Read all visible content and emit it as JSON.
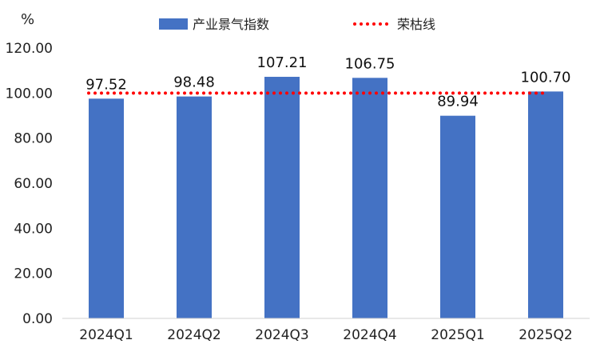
{
  "chart_data": {
    "type": "bar",
    "unit_label": "%",
    "categories": [
      "2024Q1",
      "2024Q2",
      "2024Q3",
      "2024Q4",
      "2025Q1",
      "2025Q2"
    ],
    "series": [
      {
        "name": "产业景气指数",
        "values": [
          97.52,
          98.48,
          107.21,
          106.75,
          89.94,
          100.7
        ],
        "labels": [
          "97.52",
          "98.48",
          "107.21",
          "106.75",
          "89.94",
          "100.70"
        ],
        "color": "#4472C4"
      }
    ],
    "reference_line": {
      "name": "荣枯线",
      "value": 100,
      "color": "#FF0000",
      "style": "dotted"
    },
    "yticks": [
      "0.00",
      "20.00",
      "40.00",
      "60.00",
      "80.00",
      "100.00",
      "120.00"
    ],
    "ylim": [
      0,
      120
    ],
    "grid": false,
    "legend_position": "top-center"
  }
}
